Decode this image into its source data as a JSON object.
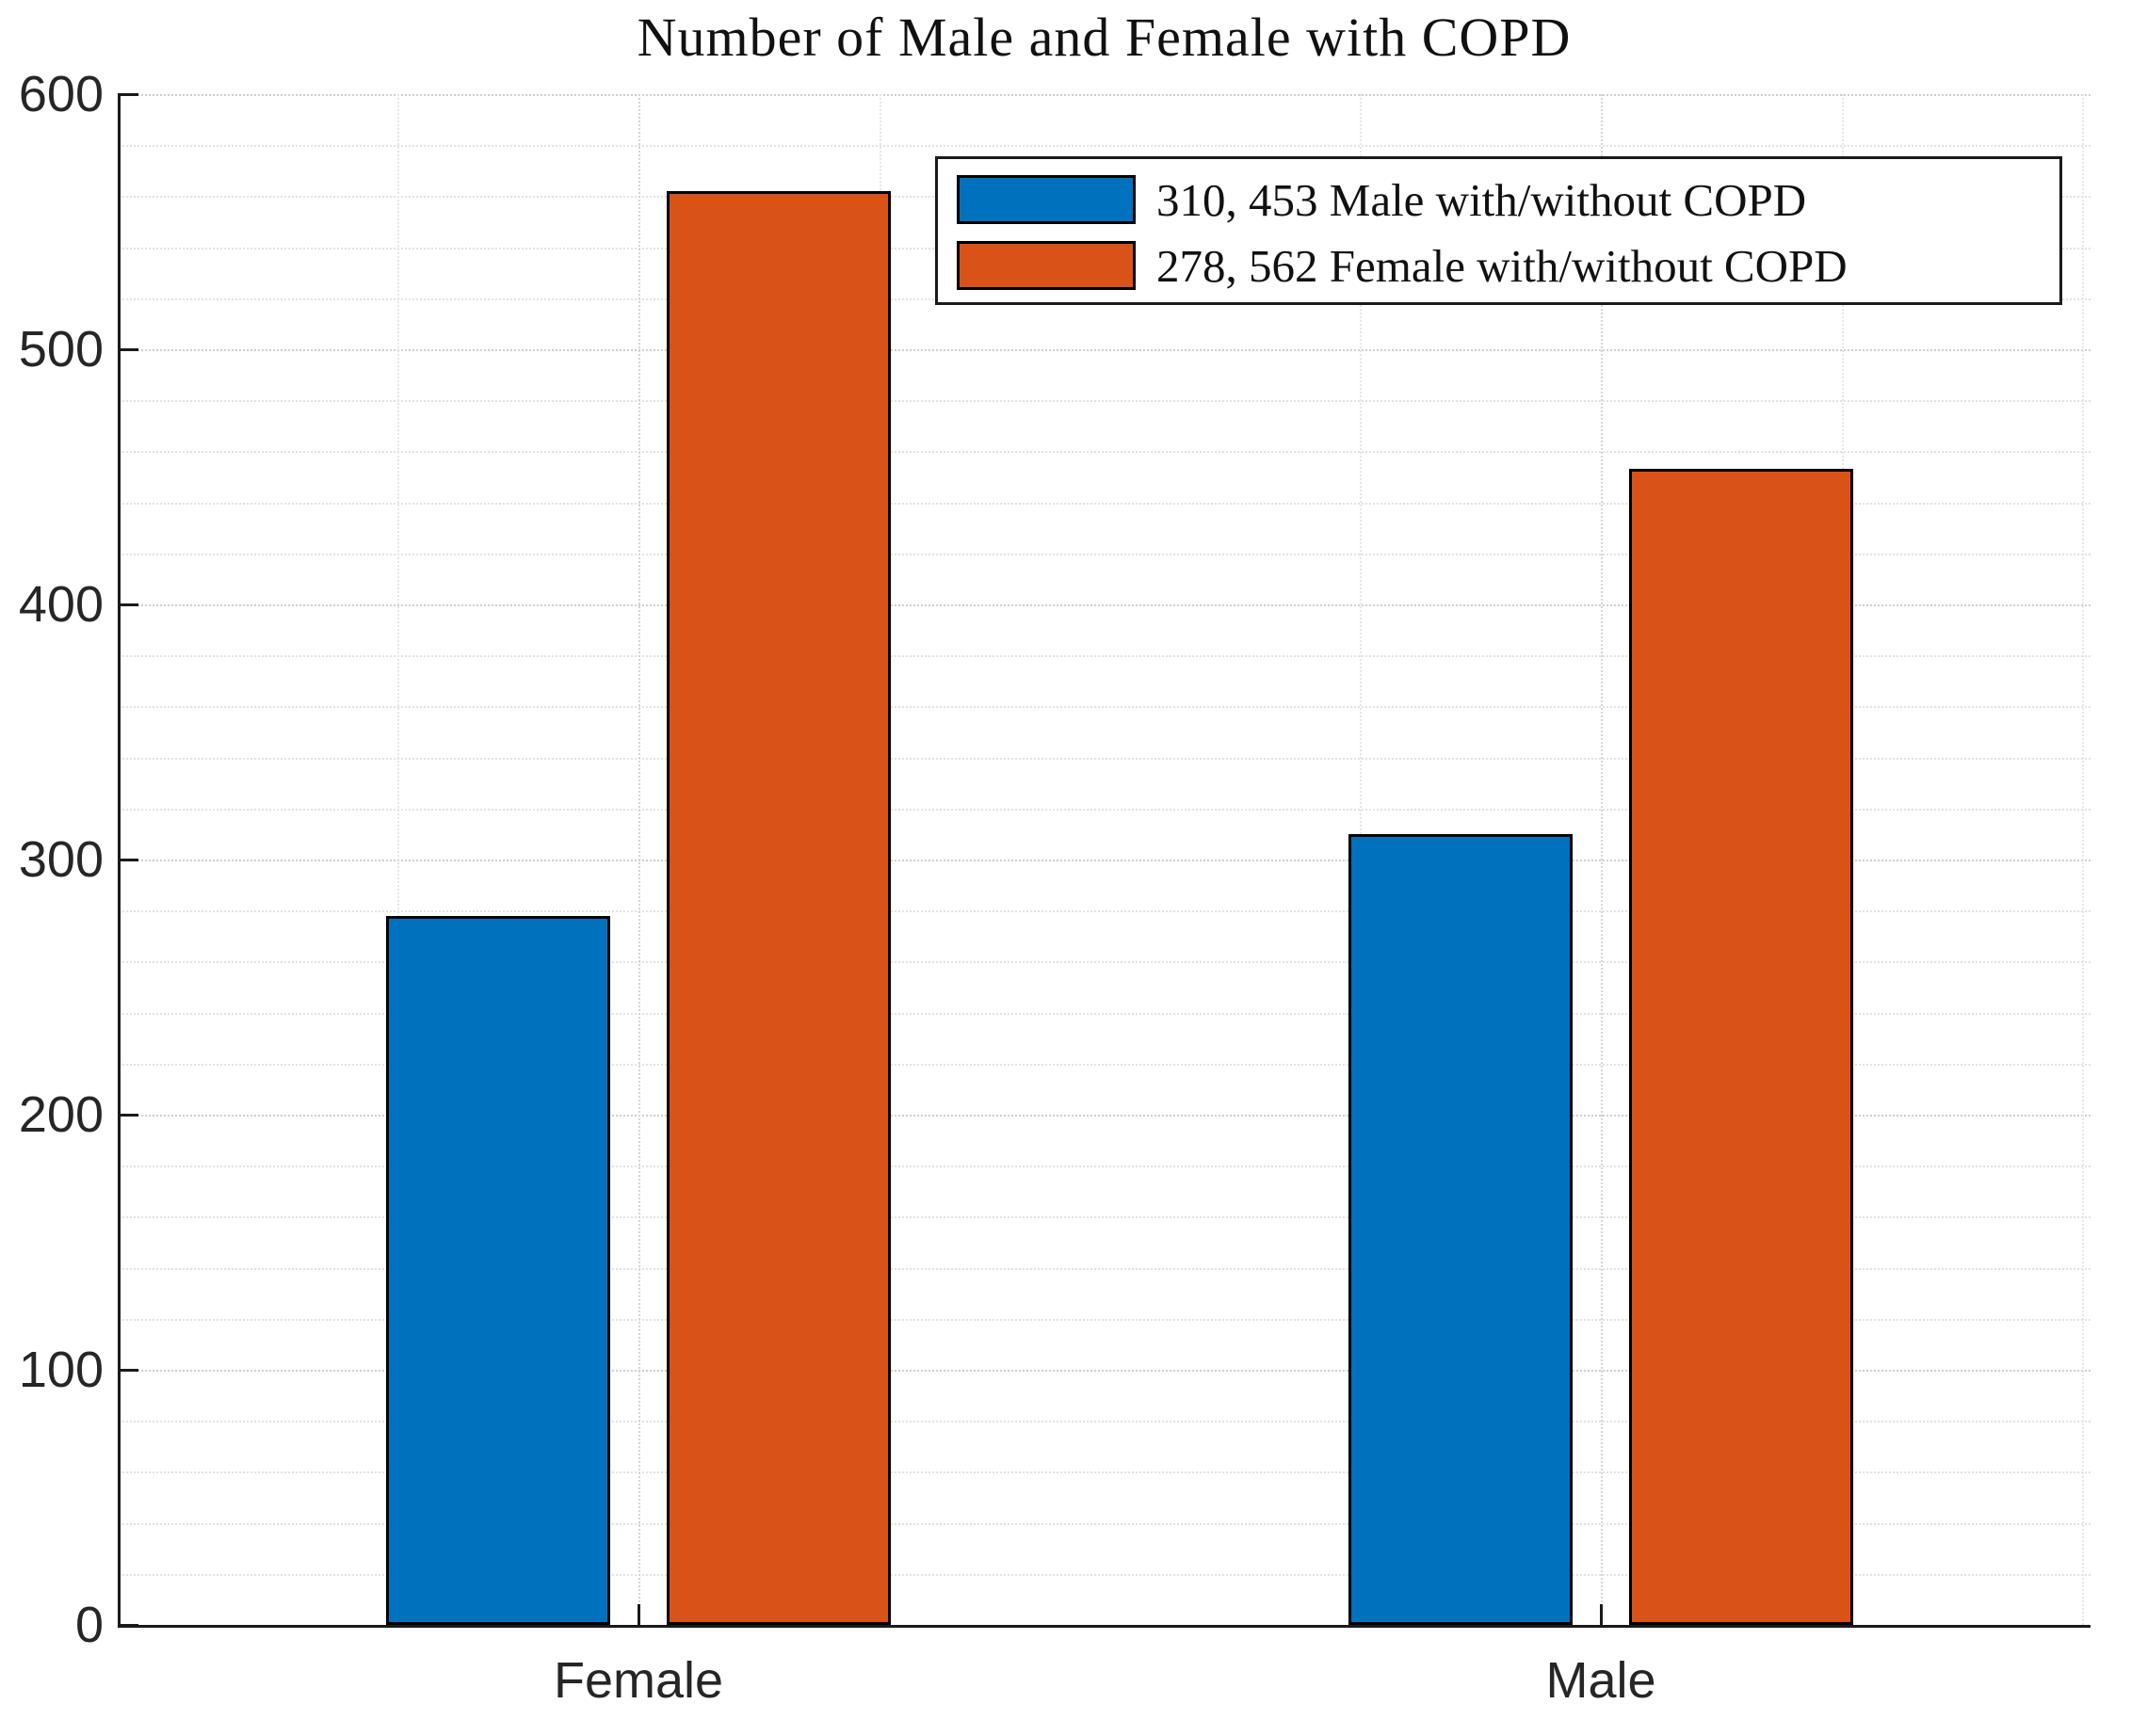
{
  "chart_data": {
    "type": "bar",
    "title": "Number of Male and Female with COPD",
    "categories": [
      "Female",
      "Male"
    ],
    "series": [
      {
        "name": "310, 453 Male with/without COPD",
        "color": "#0072BD",
        "values": [
          278,
          310
        ]
      },
      {
        "name": "278, 562 Female with/without COPD",
        "color": "#D95319",
        "values": [
          562,
          453
        ]
      }
    ],
    "xlabel": "",
    "ylabel": "",
    "ylim": [
      0,
      600
    ],
    "yticks": [
      0,
      100,
      200,
      300,
      400,
      500,
      600
    ],
    "y_minor_step": 20,
    "grid": "major+minor dotted, light gray",
    "legend_position": "northeast",
    "bar_edge_color": "#000000",
    "axis_color": "#1a1a1a",
    "background": "#ffffff"
  }
}
